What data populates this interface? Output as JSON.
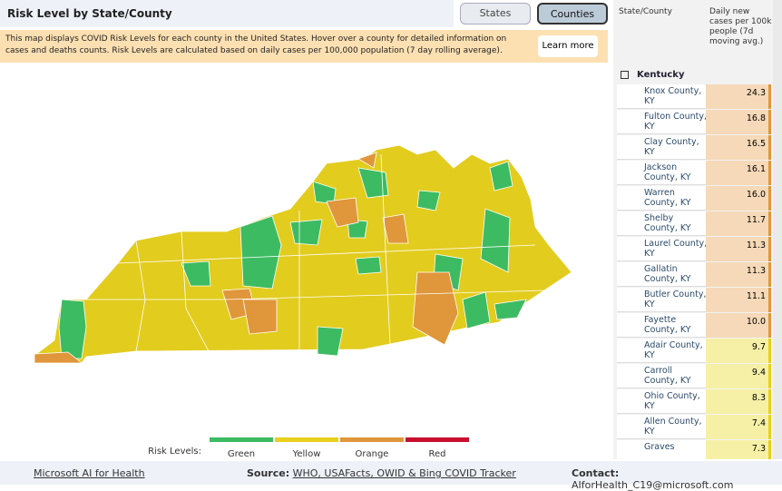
{
  "header": {
    "title": "Risk Level by State/County",
    "buttons": [
      "States",
      "Counties"
    ]
  },
  "banner": {
    "text": "This map displays COVID Risk Levels for each county in the United States. Hover over a county for detailed information on cases and deaths counts. Risk Levels are calculated based on daily cases per 100,000 population (7 day rolling average).",
    "button": "Learn more"
  },
  "legend": {
    "label": "Risk Levels:",
    "items": [
      "Green",
      "Yellow",
      "Orange",
      "Red"
    ]
  },
  "table": {
    "columns": [
      "State/County",
      "Daily new cases per 100k people (7d moving avg.)"
    ],
    "group": "Kentucky",
    "rows": [
      [
        "Knox County, KY",
        "24.3"
      ],
      [
        "Fulton County, KY",
        "16.8"
      ],
      [
        "Clay County, KY",
        "16.5"
      ],
      [
        "Jackson County, KY",
        "16.1"
      ],
      [
        "Warren County, KY",
        "16.0"
      ],
      [
        "Shelby County, KY",
        "11.7"
      ],
      [
        "Laurel County, KY",
        "11.3"
      ],
      [
        "Gallatin County, KY",
        "11.3"
      ],
      [
        "Butler County, KY",
        "11.1"
      ],
      [
        "Fayette County, KY",
        "10.0"
      ],
      [
        "Adair County, KY",
        "9.7"
      ],
      [
        "Carroll County, KY",
        "9.4"
      ],
      [
        "Ohio County, KY",
        "8.3"
      ],
      [
        "Allen County, KY",
        "7.4"
      ],
      [
        "Graves",
        "7.3"
      ]
    ]
  },
  "footer": {
    "link": "Microsoft AI for Health",
    "source_label": "Source:",
    "sources": "WHO, USAFacts, OWID & Bing COVID Tracker",
    "contact_label": "Contact:",
    "contact": "AIforHealth_C19@microsoft.com"
  }
}
